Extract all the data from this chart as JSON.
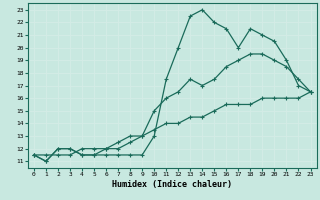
{
  "xlabel": "Humidex (Indice chaleur)",
  "ylabel": "",
  "xlim": [
    -0.5,
    23.5
  ],
  "ylim": [
    10.5,
    23.5
  ],
  "yticks": [
    11,
    12,
    13,
    14,
    15,
    16,
    17,
    18,
    19,
    20,
    21,
    22,
    23
  ],
  "xticks": [
    0,
    1,
    2,
    3,
    4,
    5,
    6,
    7,
    8,
    9,
    10,
    11,
    12,
    13,
    14,
    15,
    16,
    17,
    18,
    19,
    20,
    21,
    22,
    23
  ],
  "bg_color": "#c8e8e0",
  "grid_color": "#e8f4f0",
  "line_color": "#1a6b5a",
  "line1_x": [
    0,
    1,
    2,
    3,
    4,
    5,
    6,
    7,
    8,
    9,
    10,
    11,
    12,
    13,
    14,
    15,
    16,
    17,
    18,
    19,
    20,
    21,
    22,
    23
  ],
  "line1_y": [
    11.5,
    11.0,
    12.0,
    12.0,
    11.5,
    11.5,
    11.5,
    11.5,
    11.5,
    11.5,
    13.0,
    17.5,
    20.0,
    22.5,
    23.0,
    22.0,
    21.5,
    20.0,
    21.5,
    21.0,
    20.5,
    19.0,
    17.0,
    16.5
  ],
  "line2_x": [
    0,
    1,
    2,
    3,
    4,
    5,
    6,
    7,
    8,
    9,
    10,
    11,
    12,
    13,
    14,
    15,
    16,
    17,
    18,
    19,
    20,
    21,
    22,
    23
  ],
  "line2_y": [
    11.5,
    11.0,
    12.0,
    12.0,
    11.5,
    11.5,
    12.0,
    12.0,
    12.5,
    13.0,
    15.0,
    16.0,
    16.5,
    17.5,
    17.0,
    17.5,
    18.5,
    19.0,
    19.5,
    19.5,
    19.0,
    18.5,
    17.5,
    16.5
  ],
  "line3_x": [
    0,
    1,
    2,
    3,
    4,
    5,
    6,
    7,
    8,
    9,
    10,
    11,
    12,
    13,
    14,
    15,
    16,
    17,
    18,
    19,
    20,
    21,
    22,
    23
  ],
  "line3_y": [
    11.5,
    11.5,
    11.5,
    11.5,
    12.0,
    12.0,
    12.0,
    12.5,
    13.0,
    13.0,
    13.5,
    14.0,
    14.0,
    14.5,
    14.5,
    15.0,
    15.5,
    15.5,
    15.5,
    16.0,
    16.0,
    16.0,
    16.0,
    16.5
  ]
}
